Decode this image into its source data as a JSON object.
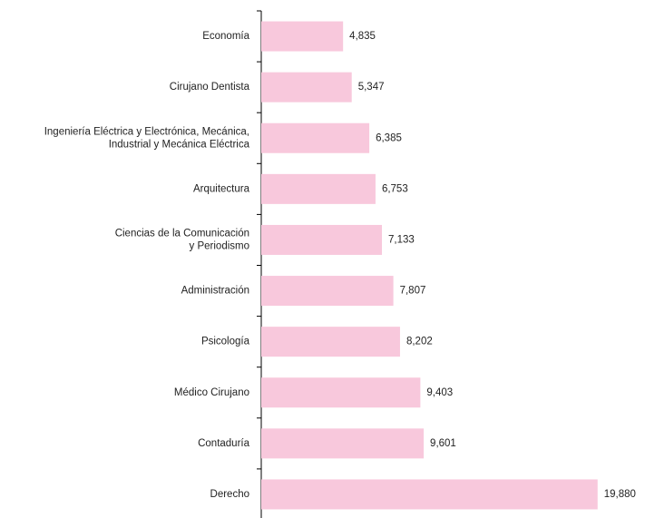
{
  "chart_data": {
    "type": "barh",
    "categories": [
      "Economía",
      "Cirujano Dentista",
      "Ingeniería Eléctrica y Electrónica, Mecánica,\nIndustrial y Mecánica Eléctrica",
      "Arquitectura",
      "Ciencias de la Comunicación\ny Periodismo",
      "Administración",
      "Psicología",
      "Médico Cirujano",
      "Contaduría",
      "Derecho"
    ],
    "values": [
      4835,
      5347,
      6385,
      6753,
      7133,
      7807,
      8202,
      9403,
      9601,
      19880
    ],
    "value_labels": [
      "4,835",
      "5,347",
      "6,385",
      "6,753",
      "7,133",
      "7,807",
      "8,202",
      "9,403",
      "9,601",
      "19,880"
    ],
    "color": "#f8c8dc",
    "xlim": [
      0,
      20000
    ]
  }
}
